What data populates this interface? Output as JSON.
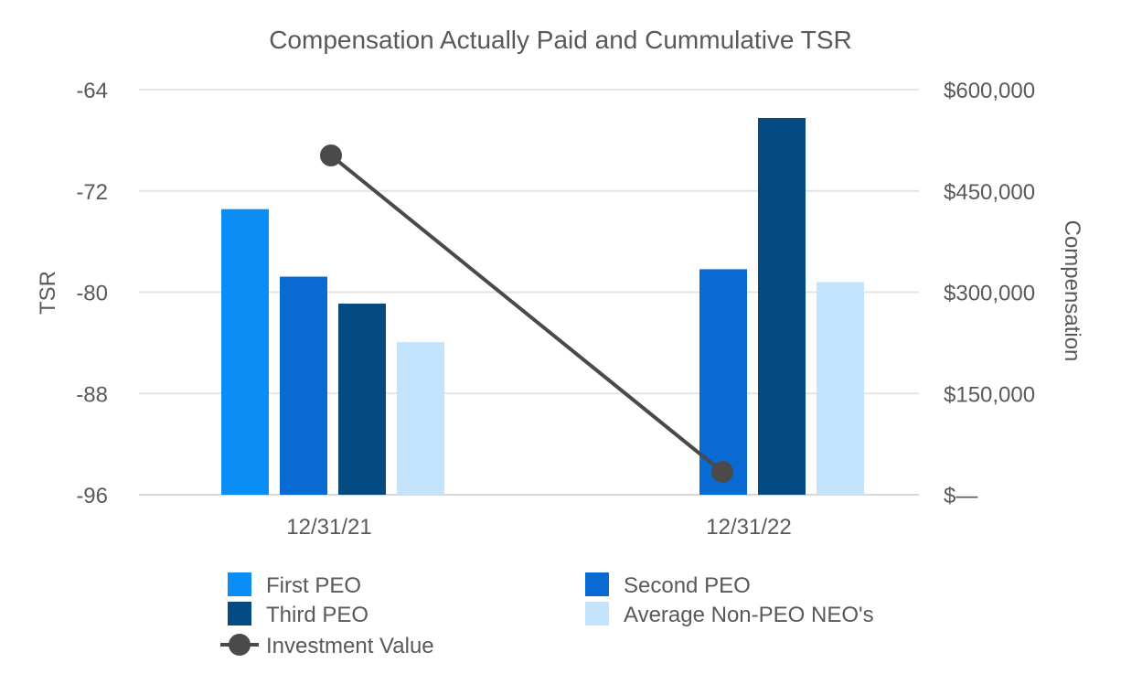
{
  "chart_data": {
    "type": "bar",
    "title": "Compensation Actually Paid and Cummulative TSR",
    "categories": [
      "12/31/21",
      "12/31/22"
    ],
    "left_axis": {
      "label": "TSR",
      "range": [
        -96,
        -64
      ],
      "ticks": [
        -64,
        -72,
        -80,
        -88,
        -96
      ],
      "tick_labels": [
        "-64",
        "-72",
        "-80",
        "-88",
        "-96"
      ]
    },
    "right_axis": {
      "label": "Compensation",
      "range": [
        0,
        600000
      ],
      "ticks": [
        600000,
        450000,
        300000,
        150000,
        0
      ],
      "tick_labels": [
        "$600,000",
        "$450,000",
        "$300,000",
        "$150,000",
        "$—"
      ]
    },
    "series": [
      {
        "name": "First PEO",
        "axis": "right",
        "kind": "bar",
        "color": "#0a8ef5",
        "values": [
          423000,
          null
        ]
      },
      {
        "name": "Second PEO",
        "axis": "right",
        "kind": "bar",
        "color": "#0a6ad3",
        "values": [
          323000,
          334000
        ]
      },
      {
        "name": "Third PEO",
        "axis": "right",
        "kind": "bar",
        "color": "#034a82",
        "values": [
          283000,
          558000
        ]
      },
      {
        "name": "Average Non-PEO NEO's",
        "axis": "right",
        "kind": "bar",
        "color": "#c3e4fc",
        "values": [
          226000,
          315000
        ]
      },
      {
        "name": "Investment Value",
        "axis": "left",
        "kind": "line",
        "color": "#4a4a4a",
        "values": [
          -69.2,
          -94.2
        ]
      }
    ],
    "grid": true,
    "legend_position": "bottom"
  }
}
